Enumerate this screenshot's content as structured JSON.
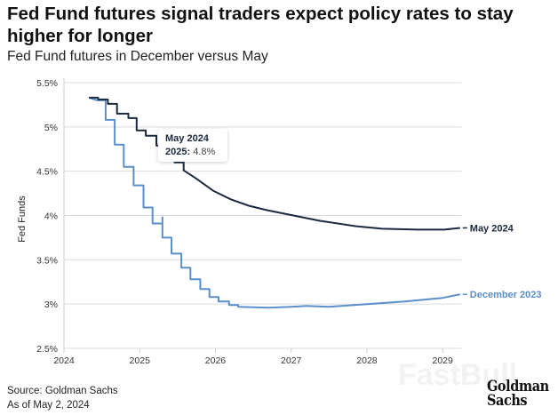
{
  "header": {
    "title": "Fed Fund futures signal traders expect policy rates to stay higher for longer",
    "subtitle": "Fed Fund futures in December versus May"
  },
  "footer": {
    "source": "Source: Goldman Sachs",
    "as_of": "As of May 2, 2024",
    "logo_line1": "Goldman",
    "logo_line2": "Sachs",
    "watermark": "FastBull"
  },
  "tooltip": {
    "title": "May 2024",
    "label": "2025:",
    "value": "4.8%"
  },
  "colors": {
    "may_2024": "#1b2a3f",
    "december_2023": "#5b8fc9",
    "grid": "#dcdcdc"
  },
  "chart_data": {
    "type": "line",
    "title": "Fed Fund futures signal traders expect policy rates to stay higher for longer",
    "subtitle": "Fed Fund futures in December versus May",
    "xlabel": "",
    "ylabel": "Fed Funds",
    "xlim": [
      2024,
      2029.25
    ],
    "ylim": [
      2.5,
      5.5
    ],
    "xticks": [
      2024,
      2025,
      2026,
      2027,
      2028,
      2029
    ],
    "xtick_labels": [
      "2024",
      "2025",
      "2026",
      "2027",
      "2028",
      "2029"
    ],
    "yticks": [
      2.5,
      3,
      3.5,
      4,
      4.5,
      5,
      5.5
    ],
    "ytick_labels": [
      "2.5%",
      "3%",
      "3.5%",
      "4%",
      "4.5%",
      "5%",
      "5.5%"
    ],
    "grid": "horizontal",
    "legend": "direct-labels-right",
    "series": [
      {
        "name": "May 2024",
        "color": "#1b2a3f",
        "points": [
          [
            2024.33,
            5.33
          ],
          [
            2024.45,
            5.33
          ],
          [
            2024.45,
            5.31
          ],
          [
            2024.58,
            5.31
          ],
          [
            2024.58,
            5.26
          ],
          [
            2024.7,
            5.26
          ],
          [
            2024.7,
            5.15
          ],
          [
            2024.85,
            5.15
          ],
          [
            2024.85,
            5.1
          ],
          [
            2024.96,
            5.1
          ],
          [
            2024.96,
            4.96
          ],
          [
            2025.08,
            4.96
          ],
          [
            2025.08,
            4.9
          ],
          [
            2025.22,
            4.9
          ],
          [
            2025.22,
            4.79
          ],
          [
            2025.34,
            4.79
          ],
          [
            2025.34,
            4.7
          ],
          [
            2025.46,
            4.7
          ],
          [
            2025.46,
            4.6
          ],
          [
            2025.58,
            4.6
          ],
          [
            2025.58,
            4.51
          ],
          [
            2025.74,
            4.42
          ],
          [
            2025.97,
            4.28
          ],
          [
            2026.21,
            4.18
          ],
          [
            2026.44,
            4.11
          ],
          [
            2026.68,
            4.06
          ],
          [
            2027.03,
            4.0
          ],
          [
            2027.38,
            3.94
          ],
          [
            2027.85,
            3.88
          ],
          [
            2028.2,
            3.85
          ],
          [
            2028.67,
            3.84
          ],
          [
            2029.02,
            3.84
          ],
          [
            2029.23,
            3.86
          ]
        ]
      },
      {
        "name": "December 2023",
        "color": "#5b8fc9",
        "points": [
          [
            2024.33,
            5.33
          ],
          [
            2024.44,
            5.3
          ],
          [
            2024.55,
            5.3
          ],
          [
            2024.55,
            5.08
          ],
          [
            2024.67,
            5.08
          ],
          [
            2024.67,
            4.8
          ],
          [
            2024.79,
            4.8
          ],
          [
            2024.79,
            4.55
          ],
          [
            2024.92,
            4.55
          ],
          [
            2024.92,
            4.34
          ],
          [
            2025.05,
            4.34
          ],
          [
            2025.05,
            4.09
          ],
          [
            2025.17,
            4.09
          ],
          [
            2025.17,
            3.91
          ],
          [
            2025.3,
            3.91
          ],
          [
            2025.3,
            3.98
          ],
          [
            2025.3,
            3.75
          ],
          [
            2025.42,
            3.75
          ],
          [
            2025.42,
            3.57
          ],
          [
            2025.55,
            3.57
          ],
          [
            2025.55,
            3.41
          ],
          [
            2025.67,
            3.41
          ],
          [
            2025.67,
            3.28
          ],
          [
            2025.8,
            3.28
          ],
          [
            2025.8,
            3.17
          ],
          [
            2025.92,
            3.17
          ],
          [
            2025.92,
            3.08
          ],
          [
            2026.04,
            3.08
          ],
          [
            2026.04,
            3.03
          ],
          [
            2026.18,
            3.03
          ],
          [
            2026.18,
            2.99
          ],
          [
            2026.3,
            2.99
          ],
          [
            2026.3,
            2.97
          ],
          [
            2026.7,
            2.96
          ],
          [
            2027.0,
            2.97
          ],
          [
            2027.2,
            2.98
          ],
          [
            2027.5,
            2.97
          ],
          [
            2028.0,
            3.0
          ],
          [
            2028.5,
            3.03
          ],
          [
            2029.0,
            3.07
          ],
          [
            2029.23,
            3.11
          ]
        ]
      }
    ]
  }
}
